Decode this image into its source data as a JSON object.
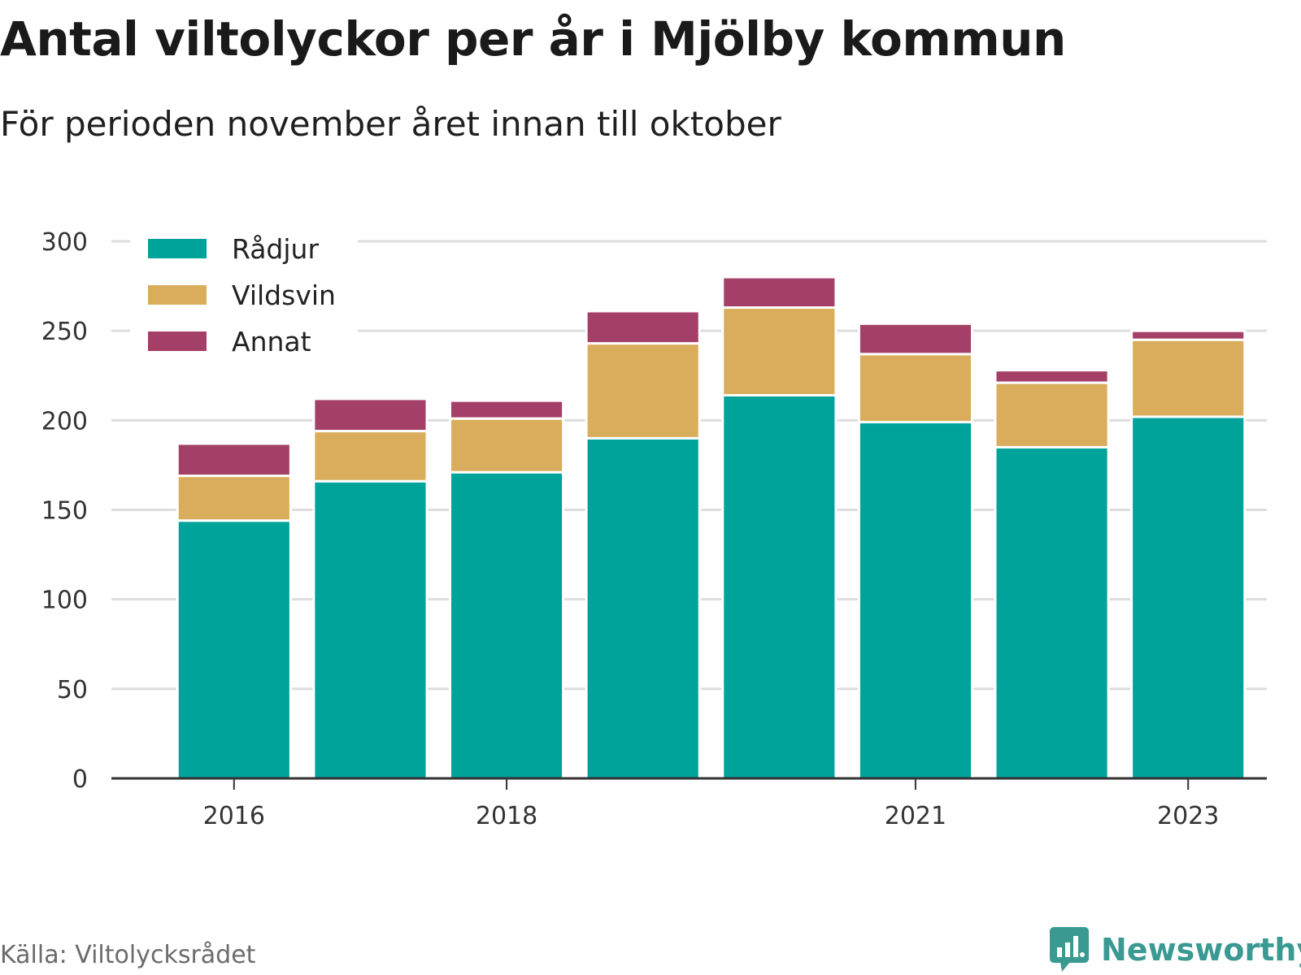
{
  "header": {
    "title": "Antal viltolyckor per år i Mjölby kommun",
    "subtitle": "För perioden november året innan till oktober"
  },
  "footer": {
    "source": "Källa: Viltolycksrådet",
    "brand": "Newsworthy"
  },
  "colors": {
    "radjur": "#00a39a",
    "vildsvin": "#d9ad5b",
    "annat": "#a44067",
    "grid": "#dddddd",
    "axis": "#333333",
    "brand": "#3a9a92"
  },
  "chart_data": {
    "type": "bar",
    "stacked": true,
    "x": [
      2016,
      2017,
      2018,
      2019,
      2020,
      2021,
      2022,
      2023
    ],
    "x_tick_labels": [
      "2016",
      "2018",
      "2021",
      "2023"
    ],
    "x_tick_values": [
      2016,
      2018,
      2021,
      2023
    ],
    "series": [
      {
        "name": "Rådjur",
        "color": "#00a39a",
        "values": [
          144,
          166,
          171,
          190,
          214,
          199,
          185,
          202
        ]
      },
      {
        "name": "Vildsvin",
        "color": "#d9ad5b",
        "values": [
          25,
          28,
          30,
          53,
          49,
          38,
          36,
          43
        ]
      },
      {
        "name": "Annat",
        "color": "#a44067",
        "values": [
          18,
          18,
          10,
          18,
          17,
          17,
          7,
          5
        ]
      }
    ],
    "ylim": [
      0,
      300
    ],
    "y_ticks": [
      0,
      50,
      100,
      150,
      200,
      250,
      300
    ],
    "grid": true,
    "legend_position": "top-left"
  }
}
